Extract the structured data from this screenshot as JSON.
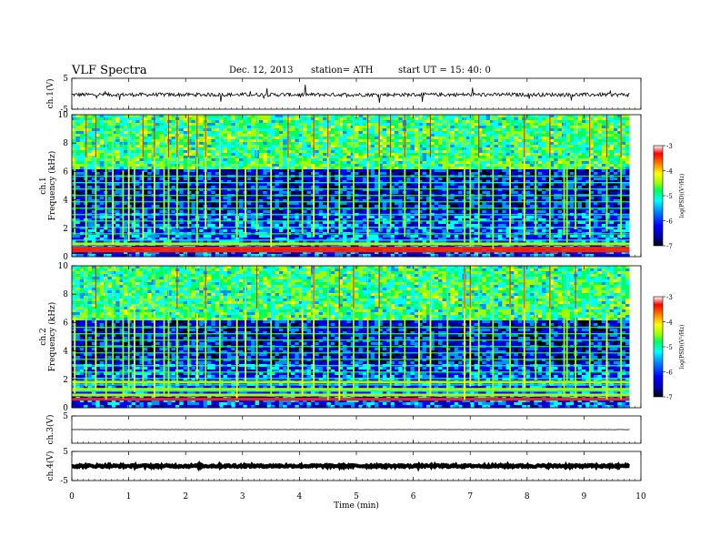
{
  "header": {
    "title": "VLF  Spectra",
    "date": "Dec. 12, 2013",
    "station": "station= ATH",
    "start": "start  UT  =    15: 40: 0"
  },
  "chart_data": [
    {
      "type": "line",
      "name": "ch1-waveform",
      "ylabel": "ch.1(V)",
      "ylim": [
        -5,
        5
      ],
      "yticks": [
        5,
        -5
      ],
      "xlim": [
        0,
        10
      ],
      "baseline": -0.3,
      "noise_amplitude": 0.6
    },
    {
      "type": "heatmap",
      "name": "ch1-spectrogram",
      "ylabel": "ch.1\nFrequency  (kHz)",
      "ylim": [
        0,
        10
      ],
      "yticks": [
        0,
        2,
        4,
        6,
        8,
        10
      ],
      "xlim": [
        0,
        9.8
      ],
      "colorbar": {
        "label": "log(PSD)(V²/Hz)",
        "ticks": [
          -3,
          -4,
          -5,
          -6,
          -7
        ],
        "range": [
          -7,
          -3
        ]
      },
      "strong_lines_khz": [
        0.4,
        0.6,
        0.9
      ],
      "spheric_times_min": [
        0.05,
        0.25,
        0.42,
        0.6,
        0.72,
        0.9,
        1.0,
        1.1,
        1.25,
        1.45,
        1.62,
        1.7,
        1.85,
        2.05,
        2.2,
        2.35,
        2.6,
        2.9,
        3.05,
        3.25,
        3.5,
        3.8,
        4.05,
        4.25,
        4.5,
        4.7,
        4.95,
        5.2,
        5.4,
        5.6,
        5.85,
        6.1,
        6.3,
        6.6,
        6.9,
        7.0,
        7.15,
        7.4,
        7.7,
        7.95,
        8.15,
        8.4,
        8.65,
        8.7,
        8.85,
        9.1,
        9.4,
        9.65
      ]
    },
    {
      "type": "heatmap",
      "name": "ch2-spectrogram",
      "ylabel": "ch.2\nFrequency  (kHz)",
      "ylim": [
        0,
        10
      ],
      "yticks": [
        0,
        2,
        4,
        6,
        8,
        10
      ],
      "xlim": [
        0,
        9.8
      ],
      "colorbar": {
        "label": "log(PSD)(V²/Hz)",
        "ticks": [
          -3,
          -4,
          -5,
          -6,
          -7
        ],
        "range": [
          -7,
          -3
        ]
      },
      "strong_lines_khz": [
        0.6,
        0.9,
        1.3,
        1.8
      ],
      "spheric_times_min": [
        0.05,
        0.25,
        0.42,
        0.6,
        0.72,
        0.9,
        1.0,
        1.1,
        1.25,
        1.45,
        1.62,
        1.7,
        1.85,
        2.05,
        2.2,
        2.35,
        2.6,
        2.9,
        3.05,
        3.25,
        3.5,
        3.8,
        4.05,
        4.25,
        4.5,
        4.7,
        4.95,
        5.2,
        5.4,
        5.6,
        5.85,
        6.1,
        6.3,
        6.6,
        6.9,
        7.0,
        7.15,
        7.4,
        7.7,
        7.95,
        8.15,
        8.4,
        8.65,
        8.7,
        8.85,
        9.1,
        9.4,
        9.65
      ]
    },
    {
      "type": "line",
      "name": "ch3-waveform",
      "ylabel": "ch.3(V)",
      "ylim": [
        -5,
        5
      ],
      "yticks": [
        5
      ],
      "xlim": [
        0,
        10
      ],
      "baseline": 0,
      "noise_amplitude": 0.05
    },
    {
      "type": "line",
      "name": "ch4-waveform",
      "ylabel": "ch.4(V)",
      "ylim": [
        -5,
        5
      ],
      "yticks": [
        5,
        -5
      ],
      "xlim": [
        0,
        10
      ],
      "baseline": 0,
      "noise_amplitude": 0.35
    }
  ],
  "xaxis": {
    "label": "Time  (min)",
    "ticks": [
      0,
      1,
      2,
      3,
      4,
      5,
      6,
      7,
      8,
      9,
      10
    ],
    "range": [
      0,
      10
    ]
  },
  "colors": {
    "colormap": [
      "#000000",
      "#0000a0",
      "#0000ff",
      "#0090ff",
      "#00ffff",
      "#00ff60",
      "#a0ff00",
      "#ffff00",
      "#ff8000",
      "#ff0000",
      "#ffffff"
    ]
  }
}
